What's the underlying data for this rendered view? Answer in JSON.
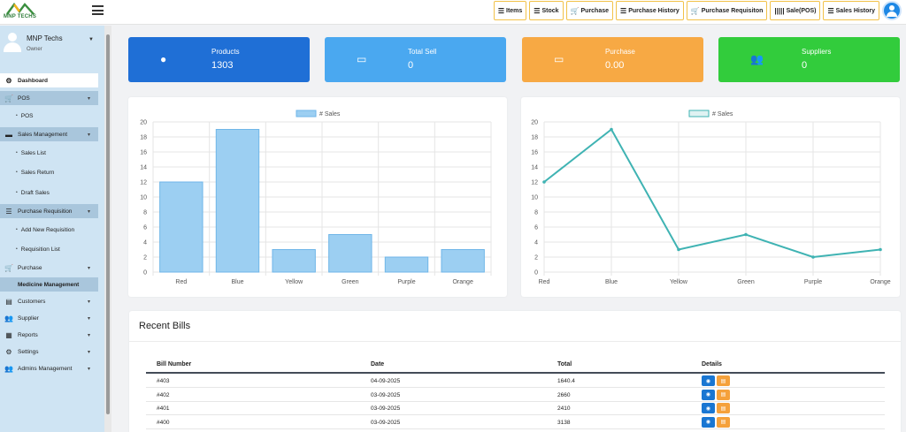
{
  "app": {
    "logo_text": "MNP TECHS"
  },
  "toolbar": [
    {
      "icon": "list-icon",
      "glyph": "☰",
      "label": "Items"
    },
    {
      "icon": "list-icon",
      "glyph": "☰",
      "label": "Stock"
    },
    {
      "icon": "cart-icon",
      "glyph": "🛒",
      "label": "Purchase"
    },
    {
      "icon": "list-icon",
      "glyph": "☰",
      "label": "Purchase History"
    },
    {
      "icon": "cart-icon",
      "glyph": "🛒",
      "label": "Purchase Requisiton"
    },
    {
      "icon": "barcode-icon",
      "glyph": "|||||",
      "label": "Sale(POS)"
    },
    {
      "icon": "list-icon",
      "glyph": "☰",
      "label": "Sales History"
    }
  ],
  "user": {
    "name": "MNP Techs",
    "role": "Owner"
  },
  "sidebar": {
    "dashboard": "Dashboard",
    "pos": "POS",
    "pos_sub": "POS",
    "sales_management": "Sales Management",
    "sales_list": "Sales List",
    "sales_return": "Sales Return",
    "draft_sales": "Draft Sales",
    "purchase_requisition": "Purchase Requisition",
    "add_new_requisition": "Add New Requisition",
    "requisition_list": "Requisition List",
    "purchase": "Purchase",
    "medicine_management": "Medicine Management",
    "customers": "Customers",
    "supplier": "Supplier",
    "reports": "Reports",
    "settings": "Settings",
    "admins_management": "Admins Management"
  },
  "stats": [
    {
      "title": "Products",
      "value": "1303",
      "color": "#1f6fd6",
      "icon": "product-icon"
    },
    {
      "title": "Total Sell",
      "value": "0",
      "color": "#4aa8f0",
      "icon": "card-icon"
    },
    {
      "title": "Purchase",
      "value": "0.00",
      "color": "#f7a944",
      "icon": "card-icon"
    },
    {
      "title": "Suppliers",
      "value": "0",
      "color": "#32cc3c",
      "icon": "users-icon"
    }
  ],
  "chart_data": [
    {
      "type": "bar",
      "categories": [
        "Red",
        "Blue",
        "Yellow",
        "Green",
        "Purple",
        "Orange"
      ],
      "series": [
        {
          "name": "# Sales",
          "values": [
            12,
            19,
            3,
            5,
            2,
            3
          ]
        }
      ],
      "ylim": [
        0,
        20
      ],
      "yticks": [
        0,
        2,
        4,
        6,
        8,
        10,
        12,
        14,
        16,
        18,
        20
      ],
      "legend": "top-center",
      "grid": true,
      "fill": "#9ccff2",
      "stroke": "#6fb6e8"
    },
    {
      "type": "line",
      "categories": [
        "Red",
        "Blue",
        "Yellow",
        "Green",
        "Purple",
        "Orange"
      ],
      "series": [
        {
          "name": "# Sales",
          "values": [
            12,
            19,
            3,
            5,
            2,
            3
          ]
        }
      ],
      "ylim": [
        0,
        20
      ],
      "yticks": [
        0,
        2,
        4,
        6,
        8,
        10,
        12,
        14,
        16,
        18,
        20
      ],
      "legend": "top-center",
      "grid": true,
      "stroke": "#3fb3b3"
    }
  ],
  "bills": {
    "title": "Recent Bills",
    "headers": {
      "bill_number": "Bill Number",
      "date": "Date",
      "total": "Total",
      "details": "Details"
    },
    "rows": [
      {
        "bill": "#403",
        "date": "04-09-2025",
        "total": "1640.4"
      },
      {
        "bill": "#402",
        "date": "03-09-2025",
        "total": "2660"
      },
      {
        "bill": "#401",
        "date": "03-09-2025",
        "total": "2410"
      },
      {
        "bill": "#400",
        "date": "03-09-2025",
        "total": "3138"
      }
    ]
  }
}
